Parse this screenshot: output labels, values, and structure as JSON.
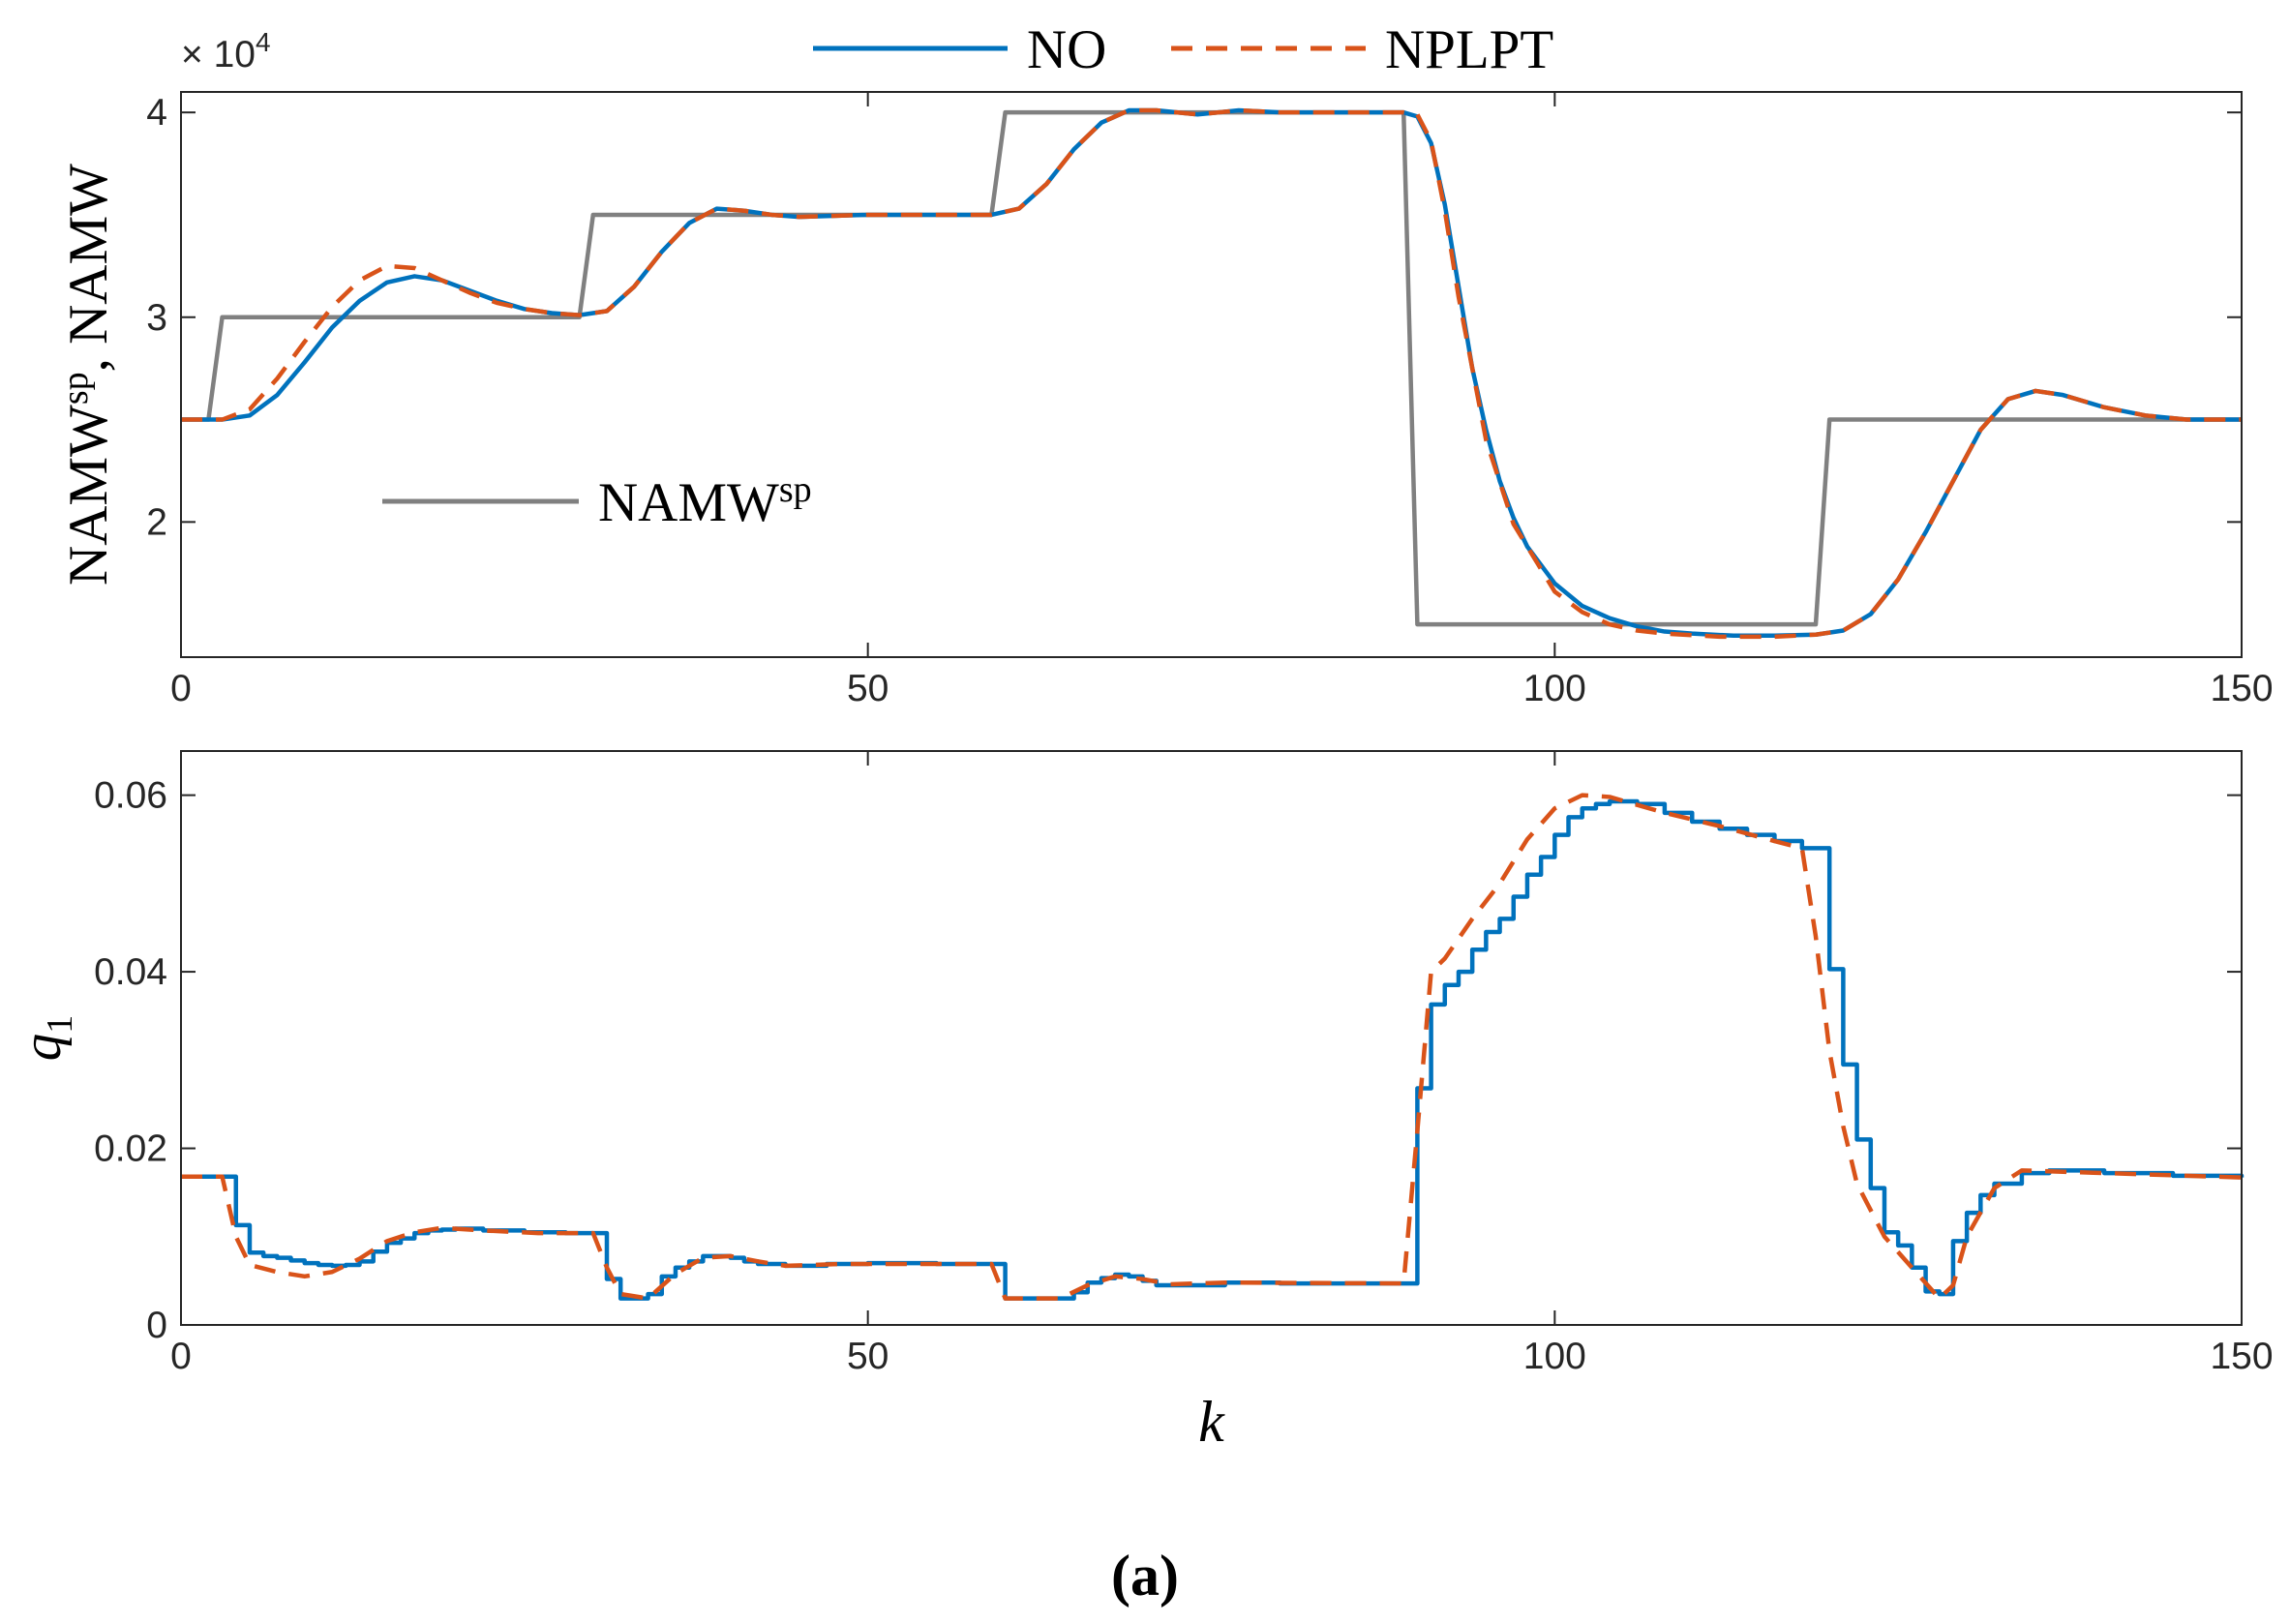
{
  "caption": "(a)",
  "chart_data": [
    {
      "type": "line",
      "ylabel": {
        "main": "NAMW",
        "sup": "sp",
        "rest": ", NAMW"
      },
      "y_multiplier": {
        "base": "× 10",
        "exponent": "4"
      },
      "xlim": [
        0,
        150
      ],
      "xticks": [
        0,
        50,
        100,
        150
      ],
      "ylim": [
        1.34,
        4.1
      ],
      "yticks": [
        2,
        3,
        4
      ],
      "series": [
        {
          "name": "NAMW",
          "name_sup": "sp",
          "color": "#808080",
          "x": [
            0,
            2,
            3,
            29,
            30,
            59,
            60,
            89,
            90,
            119,
            120,
            150
          ],
          "values": [
            2.5,
            2.5,
            3,
            3,
            3.5,
            3.5,
            4,
            4,
            1.5,
            1.5,
            2.5,
            2.5
          ]
        },
        {
          "name": "NO",
          "color": "#0072bd",
          "x": [
            0,
            3,
            5,
            7,
            9,
            11,
            13,
            15,
            17,
            19,
            21,
            23,
            25,
            27,
            29,
            31,
            33,
            35,
            37,
            39,
            41,
            43,
            45,
            50,
            55,
            59,
            61,
            63,
            65,
            67,
            69,
            71,
            74,
            77,
            80,
            85,
            89,
            90,
            91,
            92,
            93,
            94,
            95,
            96,
            97,
            98,
            100,
            102,
            104,
            106,
            108,
            110,
            113,
            116,
            119,
            121,
            123,
            125,
            127,
            129,
            131,
            133,
            135,
            137,
            140,
            143,
            146,
            150
          ],
          "values": [
            2.5,
            2.5,
            2.52,
            2.62,
            2.78,
            2.95,
            3.08,
            3.17,
            3.2,
            3.18,
            3.13,
            3.08,
            3.04,
            3.02,
            3.01,
            3.03,
            3.15,
            3.32,
            3.46,
            3.53,
            3.52,
            3.5,
            3.49,
            3.5,
            3.5,
            3.5,
            3.53,
            3.65,
            3.82,
            3.95,
            4.01,
            4.01,
            3.99,
            4.01,
            4.0,
            4.0,
            4.0,
            3.98,
            3.85,
            3.55,
            3.15,
            2.75,
            2.45,
            2.2,
            2.02,
            1.88,
            1.7,
            1.59,
            1.53,
            1.49,
            1.465,
            1.455,
            1.445,
            1.445,
            1.45,
            1.47,
            1.55,
            1.72,
            1.95,
            2.2,
            2.45,
            2.6,
            2.64,
            2.62,
            2.56,
            2.52,
            2.5,
            2.5
          ]
        },
        {
          "name": "NPLPT",
          "color": "#d95319",
          "dash": true,
          "x": [
            0,
            3,
            5,
            7,
            9,
            11,
            13,
            15,
            17,
            19,
            21,
            23,
            25,
            27,
            29,
            31,
            33,
            35,
            37,
            39,
            41,
            43,
            45,
            50,
            55,
            59,
            61,
            63,
            65,
            67,
            69,
            71,
            74,
            77,
            80,
            85,
            89,
            90,
            91,
            92,
            93,
            95,
            97,
            100,
            102,
            104,
            106,
            108,
            112,
            116,
            119,
            121,
            123,
            125,
            127,
            129,
            131,
            133,
            135,
            137,
            140,
            143,
            146,
            150
          ],
          "values": [
            2.5,
            2.5,
            2.55,
            2.7,
            2.88,
            3.05,
            3.18,
            3.25,
            3.24,
            3.18,
            3.12,
            3.07,
            3.04,
            3.02,
            3.01,
            3.03,
            3.15,
            3.32,
            3.46,
            3.53,
            3.52,
            3.5,
            3.49,
            3.5,
            3.5,
            3.5,
            3.53,
            3.65,
            3.82,
            3.95,
            4.01,
            4.01,
            3.99,
            4.01,
            4.0,
            4.0,
            4.0,
            3.99,
            3.86,
            3.52,
            3.1,
            2.4,
            1.99,
            1.66,
            1.56,
            1.5,
            1.47,
            1.455,
            1.44,
            1.44,
            1.45,
            1.47,
            1.55,
            1.72,
            1.95,
            2.2,
            2.45,
            2.6,
            2.64,
            2.62,
            2.56,
            2.52,
            2.5,
            2.5
          ]
        }
      ]
    },
    {
      "type": "line",
      "ylabel": {
        "main": "q",
        "sub": "1"
      },
      "xlabel": "k",
      "xlim": [
        0,
        150
      ],
      "xticks": [
        0,
        50,
        100,
        150
      ],
      "ylim": [
        0,
        0.065
      ],
      "yticks": [
        0,
        0.02,
        0.04,
        0.06
      ],
      "series": [
        {
          "color": "#0072bd",
          "step": "post",
          "x": [
            0,
            4,
            5,
            6,
            7,
            8,
            9,
            10,
            11,
            12,
            13,
            14,
            15,
            16,
            17,
            18,
            19,
            20,
            22,
            25,
            28,
            31,
            32,
            34,
            35,
            36,
            37,
            38,
            39,
            40,
            41,
            42,
            44,
            47,
            50,
            55,
            60,
            65,
            66,
            67,
            68,
            69,
            70,
            71,
            73,
            76,
            80,
            85,
            90,
            91,
            92,
            93,
            94,
            95,
            96,
            97,
            98,
            99,
            100,
            101,
            102,
            103,
            104,
            106,
            108,
            110,
            112,
            114,
            116,
            118,
            120,
            121,
            122,
            123,
            124,
            125,
            126,
            127,
            128,
            129,
            130,
            131,
            132,
            134,
            136,
            140,
            145,
            150
          ],
          "values": [
            0.0168,
            0.0113,
            0.0082,
            0.0078,
            0.0076,
            0.0073,
            0.007,
            0.0068,
            0.0067,
            0.0068,
            0.0072,
            0.0083,
            0.0093,
            0.0098,
            0.0104,
            0.0107,
            0.0108,
            0.0109,
            0.0107,
            0.0105,
            0.0104,
            0.0052,
            0.003,
            0.0035,
            0.0055,
            0.0065,
            0.0072,
            0.0078,
            0.0078,
            0.0076,
            0.0072,
            0.0069,
            0.0067,
            0.0069,
            0.007,
            0.0069,
            0.003,
            0.0037,
            0.0048,
            0.0053,
            0.0057,
            0.0055,
            0.005,
            0.0045,
            0.0045,
            0.0048,
            0.0047,
            0.0047,
            0.0268,
            0.0363,
            0.0385,
            0.04,
            0.0425,
            0.0445,
            0.046,
            0.0485,
            0.051,
            0.053,
            0.0555,
            0.0575,
            0.0585,
            0.059,
            0.0593,
            0.059,
            0.058,
            0.057,
            0.0562,
            0.0555,
            0.0548,
            0.054,
            0.0403,
            0.0295,
            0.021,
            0.0155,
            0.0105,
            0.009,
            0.0065,
            0.0038,
            0.0035,
            0.0095,
            0.0127,
            0.0147,
            0.016,
            0.0172,
            0.0175,
            0.0172,
            0.0169,
            0.0167
          ]
        },
        {
          "color": "#d95319",
          "dash": true,
          "x": [
            0,
            3,
            4,
            5,
            7,
            9,
            11,
            13,
            15,
            17,
            19,
            22,
            26,
            30,
            31,
            32,
            34,
            36,
            38,
            40,
            42,
            44,
            48,
            59,
            60,
            64,
            66,
            68,
            70,
            72,
            76,
            89,
            90,
            91,
            92,
            94,
            96,
            98,
            100,
            102,
            104,
            108,
            112,
            116,
            118,
            119,
            120,
            121,
            122,
            124,
            126,
            128,
            129,
            130,
            132,
            134,
            140,
            150
          ],
          "values": [
            0.0168,
            0.0168,
            0.01,
            0.0068,
            0.006,
            0.0055,
            0.006,
            0.0075,
            0.0095,
            0.0105,
            0.011,
            0.0107,
            0.0104,
            0.0104,
            0.0065,
            0.0035,
            0.003,
            0.0058,
            0.0076,
            0.0078,
            0.0072,
            0.0067,
            0.0069,
            0.0069,
            0.003,
            0.003,
            0.0045,
            0.0055,
            0.0052,
            0.0046,
            0.0048,
            0.0047,
            0.022,
            0.04,
            0.0415,
            0.046,
            0.05,
            0.055,
            0.0585,
            0.06,
            0.0598,
            0.058,
            0.0565,
            0.0548,
            0.054,
            0.044,
            0.031,
            0.0225,
            0.016,
            0.01,
            0.0065,
            0.003,
            0.0045,
            0.01,
            0.0155,
            0.0175,
            0.0172,
            0.0167
          ]
        }
      ]
    }
  ]
}
